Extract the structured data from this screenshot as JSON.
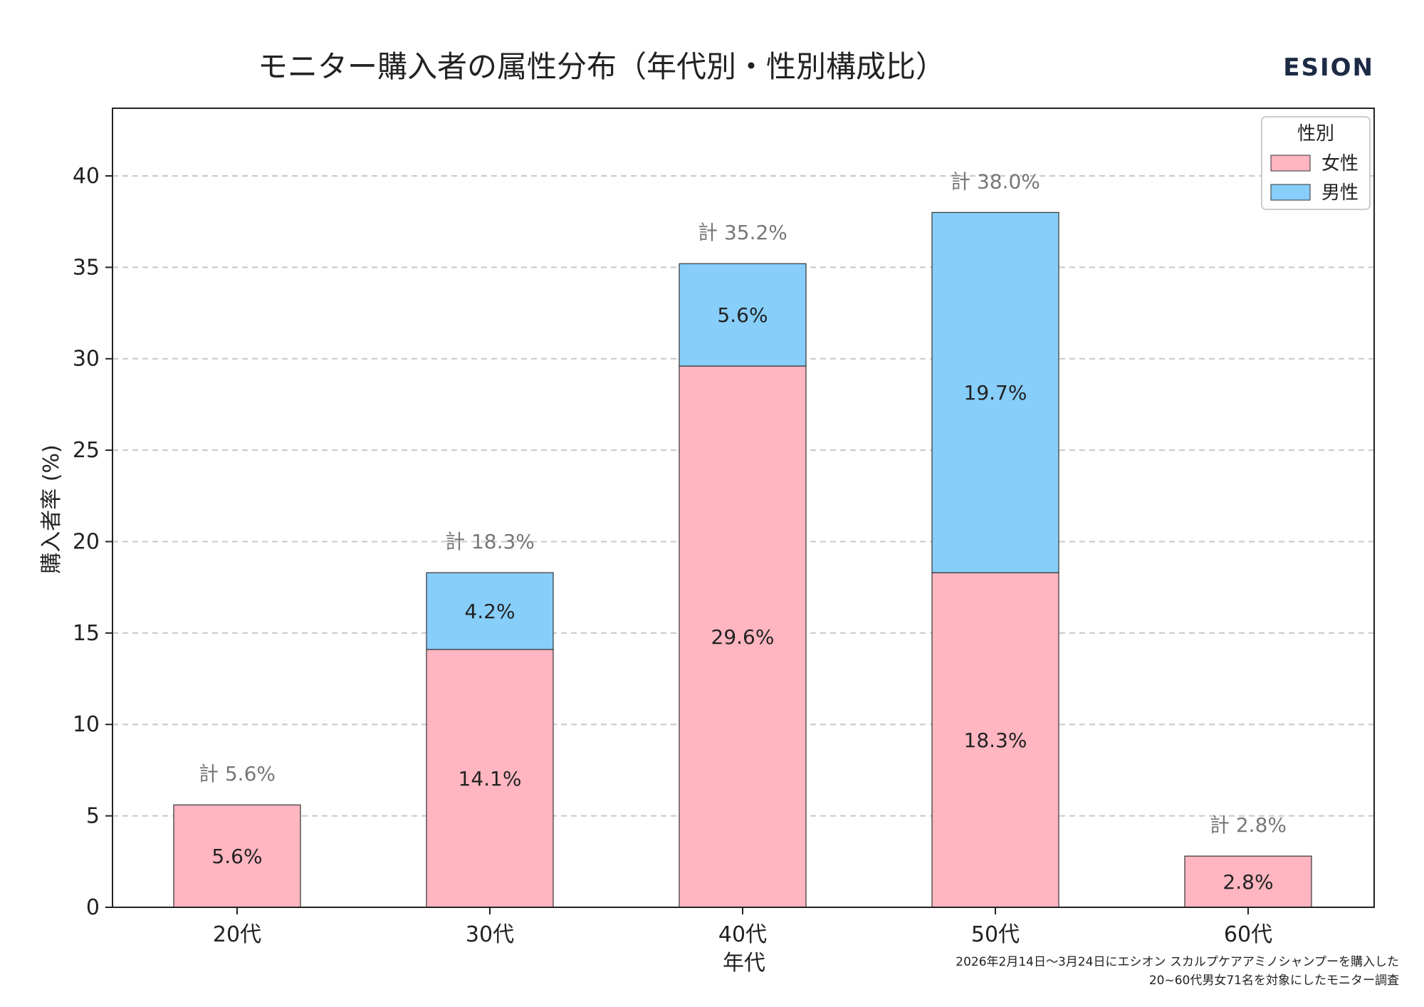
{
  "chart_data": {
    "type": "bar",
    "stacked": true,
    "title": "モニター購入者の属性分布（年代別・性別構成比）",
    "brand": "ESION",
    "xlabel": "年代",
    "ylabel": "購入者率 (%)",
    "ylim": [
      0,
      43.7
    ],
    "yticks": [
      0,
      5,
      10,
      15,
      20,
      25,
      30,
      35,
      40
    ],
    "grid": "y-dashed",
    "categories": [
      "20代",
      "30代",
      "40代",
      "50代",
      "60代"
    ],
    "series": [
      {
        "name": "女性",
        "color": "#FFB6C1",
        "values": [
          5.6,
          14.1,
          29.6,
          18.3,
          2.8
        ],
        "labels": [
          "5.6%",
          "14.1%",
          "29.6%",
          "18.3%",
          "2.8%"
        ]
      },
      {
        "name": "男性",
        "color": "#87CEFA",
        "values": [
          0,
          4.2,
          5.6,
          19.7,
          0
        ],
        "labels": [
          "",
          "4.2%",
          "5.6%",
          "19.7%",
          ""
        ]
      }
    ],
    "totals": [
      5.6,
      18.3,
      35.2,
      38.0,
      2.8
    ],
    "total_labels": [
      "計 5.6%",
      "計 18.3%",
      "計 35.2%",
      "計 38.0%",
      "計 2.8%"
    ],
    "legend": {
      "title": "性別",
      "placement": "top-right"
    },
    "note_lines": [
      "2026年2月14日〜3月24日にエシオン スカルプケアアミノシャンプーを購入した",
      "20~60代男女71名を対象にしたモニター調査"
    ]
  }
}
